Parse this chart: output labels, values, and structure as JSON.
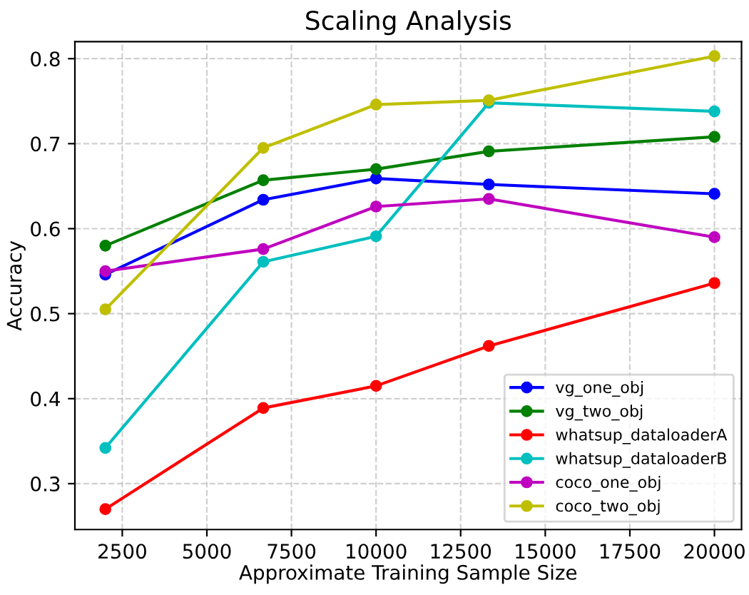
{
  "chart_data": {
    "type": "line",
    "title": "Scaling Analysis",
    "xlabel": "Approximate Training Sample Size",
    "ylabel": "Accuracy",
    "x": [
      2000,
      6667,
      10000,
      13333,
      20000
    ],
    "series": [
      {
        "name": "vg_one_obj",
        "color": "#0000ff",
        "values": [
          0.546,
          0.634,
          0.659,
          0.652,
          0.641
        ]
      },
      {
        "name": "vg_two_obj",
        "color": "#008000",
        "values": [
          0.58,
          0.657,
          0.67,
          0.691,
          0.708
        ]
      },
      {
        "name": "whatsup_dataloaderA",
        "color": "#ff0000",
        "values": [
          0.27,
          0.389,
          0.415,
          0.462,
          0.536
        ]
      },
      {
        "name": "whatsup_dataloaderB",
        "color": "#00bfbf",
        "values": [
          0.342,
          0.561,
          0.591,
          0.748,
          0.738
        ]
      },
      {
        "name": "coco_one_obj",
        "color": "#bf00bf",
        "values": [
          0.55,
          0.576,
          0.626,
          0.635,
          0.59
        ]
      },
      {
        "name": "coco_two_obj",
        "color": "#bfbf00",
        "values": [
          0.505,
          0.695,
          0.746,
          0.751,
          0.803
        ]
      }
    ],
    "xlim": [
      1100,
      20800
    ],
    "ylim": [
      0.246,
      0.82
    ],
    "xticks": [
      2500,
      5000,
      7500,
      10000,
      12500,
      15000,
      17500,
      20000
    ],
    "yticks": [
      0.3,
      0.4,
      0.5,
      0.6,
      0.7,
      0.8
    ],
    "grid": true,
    "legend": "bottom right",
    "marker": "circle",
    "line_style": "solid"
  }
}
